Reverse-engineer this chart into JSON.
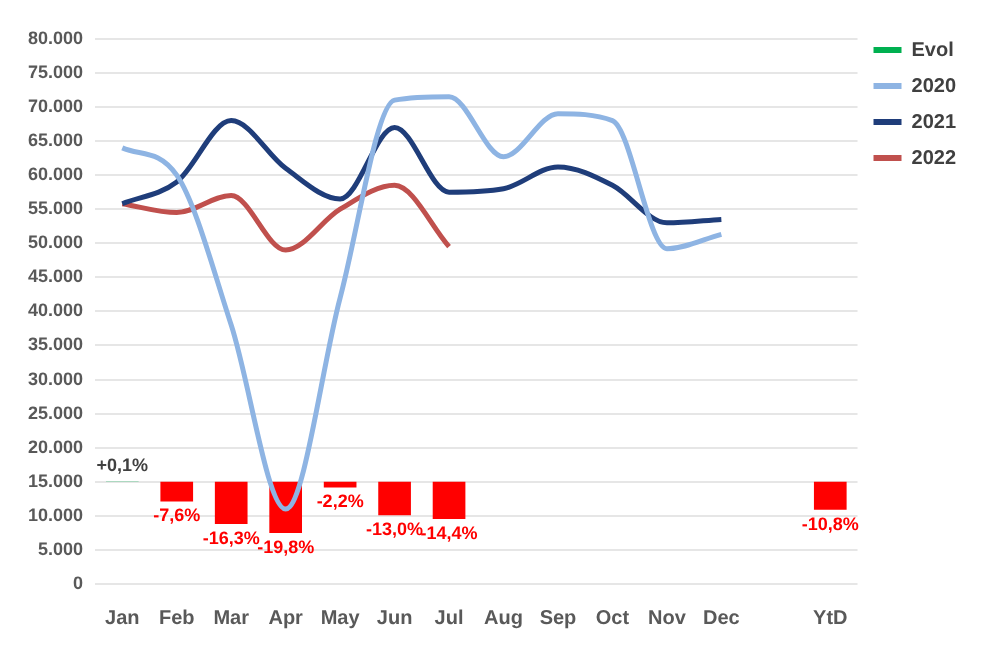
{
  "chart_data": {
    "type": "line",
    "categories": [
      "Jan",
      "Feb",
      "Mar",
      "Apr",
      "May",
      "Jun",
      "Jul",
      "Aug",
      "Sep",
      "Oct",
      "Nov",
      "Dec",
      null,
      "YtD"
    ],
    "series": [
      {
        "name": "Evol",
        "type": "bar",
        "axis": "y2",
        "color": "#00b050",
        "colors": [
          "#00b050",
          "#ff0000",
          "#ff0000",
          "#ff0000",
          "#ff0000",
          "#ff0000",
          "#ff0000",
          null,
          null,
          null,
          null,
          null,
          null,
          "#ff0000"
        ],
        "values": [
          0.1,
          -7.6,
          -16.3,
          -19.8,
          -2.2,
          -13.0,
          -14.4,
          null,
          null,
          null,
          null,
          null,
          null,
          -10.8
        ],
        "value_labels": [
          "+0,1%",
          "-7,6%",
          "-16,3%",
          "-19,8%",
          "-2,2%",
          "-13,0%",
          "-14,4%",
          null,
          null,
          null,
          null,
          null,
          null,
          "-10,8%"
        ]
      },
      {
        "name": "2020",
        "color": "#8eb4e3",
        "values": [
          64000,
          60000,
          38000,
          11000,
          42000,
          71000,
          71500,
          62700,
          69000,
          68000,
          49200,
          51300,
          null,
          null
        ]
      },
      {
        "name": "2021",
        "color": "#1f3d7a",
        "values": [
          55800,
          59000,
          68000,
          61000,
          56500,
          67000,
          57500,
          58000,
          61200,
          58500,
          53000,
          53500,
          null,
          null
        ]
      },
      {
        "name": "2022",
        "color": "#c0504d",
        "values": [
          55800,
          54500,
          57000,
          49000,
          55000,
          58500,
          49500,
          null,
          null,
          null,
          null,
          null,
          null,
          null
        ]
      }
    ],
    "ylim": [
      0,
      80000
    ],
    "yticks": [
      0,
      {
        "value": 5000,
        "label": "5.000"
      },
      {
        "value": 10000,
        "label": "10.000"
      },
      {
        "value": 15000,
        "label": "15.000"
      },
      {
        "value": 20000,
        "label": "20.000"
      },
      {
        "value": 25000,
        "label": "25.000"
      },
      {
        "value": 30000,
        "label": "30.000"
      },
      {
        "value": 35000,
        "label": "35.000"
      },
      {
        "value": 40000,
        "label": "40.000"
      },
      {
        "value": 45000,
        "label": "45.000"
      },
      {
        "value": 50000,
        "label": "50.000"
      },
      {
        "value": 55000,
        "label": "55.000"
      },
      {
        "value": 60000,
        "label": "60.000"
      },
      {
        "value": 65000,
        "label": "65.000"
      },
      {
        "value": 70000,
        "label": "70.000"
      },
      {
        "value": 75000,
        "label": "75.000"
      },
      {
        "value": 80000,
        "label": "80.000"
      }
    ],
    "y2lim": [
      -39.5,
      171
    ],
    "grid": "y",
    "legend": "top right"
  }
}
